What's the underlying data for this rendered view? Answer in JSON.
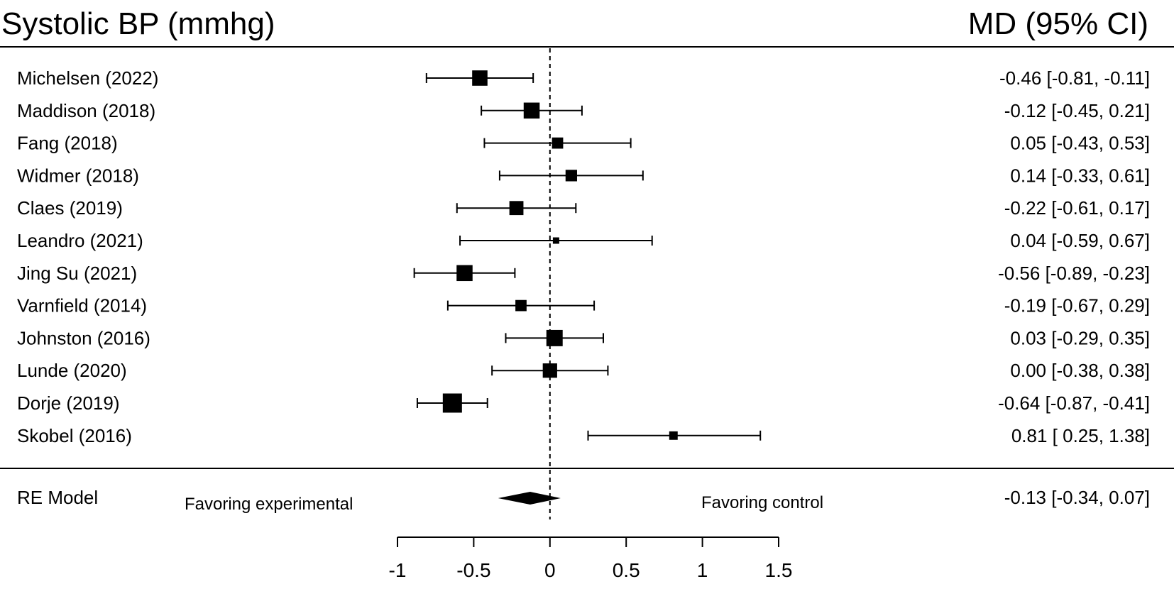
{
  "chart_data": {
    "type": "forest",
    "title": "Systolic BP (mmhg)",
    "estimate_header": "MD (95% CI)",
    "studies": [
      {
        "label": "Michelsen  (2022)",
        "md": -0.46,
        "lo": -0.81,
        "hi": -0.11,
        "ci_text": "-0.46 [-0.81, -0.11]"
      },
      {
        "label": "Maddison (2018)",
        "md": -0.12,
        "lo": -0.45,
        "hi": 0.21,
        "ci_text": "-0.12 [-0.45,  0.21]"
      },
      {
        "label": "Fang (2018)",
        "md": 0.05,
        "lo": -0.43,
        "hi": 0.53,
        "ci_text": "0.05 [-0.43,  0.53]"
      },
      {
        "label": "Widmer (2018)",
        "md": 0.14,
        "lo": -0.33,
        "hi": 0.61,
        "ci_text": "0.14 [-0.33,  0.61]"
      },
      {
        "label": "Claes (2019)",
        "md": -0.22,
        "lo": -0.61,
        "hi": 0.17,
        "ci_text": "-0.22 [-0.61,  0.17]"
      },
      {
        "label": "Leandro (2021)",
        "md": 0.04,
        "lo": -0.59,
        "hi": 0.67,
        "ci_text": "0.04 [-0.59,  0.67]"
      },
      {
        "label": "Jing Su (2021)",
        "md": -0.56,
        "lo": -0.89,
        "hi": -0.23,
        "ci_text": "-0.56 [-0.89, -0.23]"
      },
      {
        "label": "Varnfield (2014)",
        "md": -0.19,
        "lo": -0.67,
        "hi": 0.29,
        "ci_text": "-0.19 [-0.67,  0.29]"
      },
      {
        "label": "Johnston (2016)",
        "md": 0.03,
        "lo": -0.29,
        "hi": 0.35,
        "ci_text": "0.03 [-0.29,  0.35]"
      },
      {
        "label": "Lunde (2020)",
        "md": 0.0,
        "lo": -0.38,
        "hi": 0.38,
        "ci_text": "0.00 [-0.38,  0.38]"
      },
      {
        "label": "Dorje (2019)",
        "md": -0.64,
        "lo": -0.87,
        "hi": -0.41,
        "ci_text": "-0.64 [-0.87, -0.41]"
      },
      {
        "label": "Skobel (2016)",
        "md": 0.81,
        "lo": 0.25,
        "hi": 1.38,
        "ci_text": "0.81 [ 0.25,  1.38]"
      }
    ],
    "summary": {
      "label": "RE Model",
      "md": -0.13,
      "lo": -0.34,
      "hi": 0.07,
      "ci_text": "-0.13 [-0.34,  0.07]"
    },
    "favoring_left": "Favoring experimental",
    "favoring_right": "Favoring control",
    "xlim": [
      -1,
      1.5
    ],
    "xticks": [
      -1,
      -0.5,
      0,
      0.5,
      1,
      1.5
    ],
    "xtick_labels": [
      "-1",
      "-0.5",
      "0",
      "0.5",
      "1",
      "1.5"
    ],
    "reference_line": 0
  }
}
